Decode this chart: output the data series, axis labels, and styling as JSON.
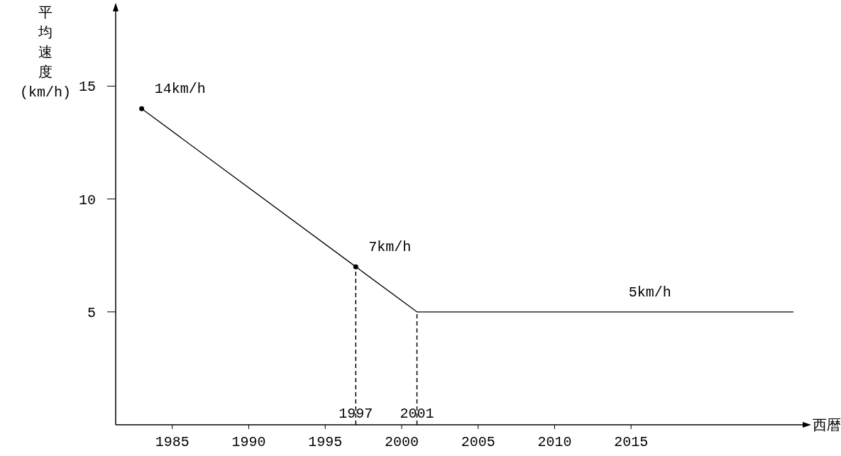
{
  "chart_data": {
    "type": "line",
    "xlabel": "西暦",
    "ylabel": "平均速度(km/h)",
    "xlim": [
      1981.3,
      2026.5
    ],
    "ylim": [
      0,
      18.5
    ],
    "xticks": [
      1985,
      1990,
      1995,
      2000,
      2005,
      2010,
      2015
    ],
    "yticks": [
      5,
      10,
      15
    ],
    "grid": false,
    "series": [
      {
        "color": "#000000",
        "marker": "none",
        "x": [
          1983,
          1997,
          2001,
          2025.6
        ],
        "values": [
          14,
          7,
          5,
          5
        ]
      },
      {
        "type": "scatter",
        "color": "#000000",
        "marker": "circle",
        "x": [
          1983,
          1997
        ],
        "values": [
          14,
          7
        ]
      }
    ],
    "ref_lines": [
      {
        "axis": "x",
        "value": 1997,
        "label": "1997",
        "line_style": "dashed",
        "color": "#000000"
      },
      {
        "axis": "x",
        "value": 2001,
        "label": "2001",
        "line_style": "dashed",
        "color": "#000000"
      }
    ],
    "annotations": [
      {
        "text": "14km/h",
        "x": 1983,
        "y": 14
      },
      {
        "text": "7km/h",
        "x": 1997,
        "y": 7
      },
      {
        "text": "5km/h",
        "x": 2014,
        "y": 5
      }
    ]
  }
}
